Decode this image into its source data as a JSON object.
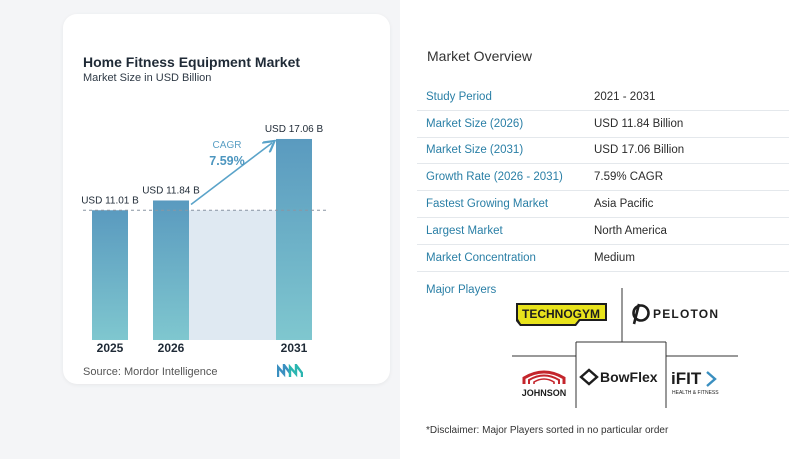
{
  "chart": {
    "title": "Home Fitness Equipment Market",
    "subtitle": "Market Size in USD Billion",
    "cagr_label": "CAGR",
    "cagr_value": "7.59%",
    "source": "Source:  Mordor Intelligence",
    "colors": {
      "bar_top": "#5a9abf",
      "bar_bottom": "#7fc7cf",
      "shade": "#dfe9f2",
      "arrow": "#5aa3c9"
    }
  },
  "chart_data": {
    "type": "bar",
    "categories": [
      "2025",
      "2026",
      "2031"
    ],
    "values": [
      11.01,
      11.84,
      17.06
    ],
    "data_labels": [
      "USD 11.01 B",
      "USD 11.84 B",
      "USD 17.06 B"
    ],
    "ylim": [
      0,
      18.5
    ],
    "grid": false
  },
  "overview": {
    "title": "Market Overview",
    "rows": [
      {
        "key": "Study Period",
        "value": "2021 - 2031"
      },
      {
        "key": "Market Size (2026)",
        "value": "USD 11.84 Billion"
      },
      {
        "key": "Market Size (2031)",
        "value": "USD 17.06 Billion"
      },
      {
        "key": "Growth Rate (2026 - 2031)",
        "value": "7.59% CAGR"
      },
      {
        "key": "Fastest Growing Market",
        "value": "Asia Pacific"
      },
      {
        "key": "Largest Market",
        "value": "North America"
      },
      {
        "key": "Market Concentration",
        "value": "Medium"
      }
    ]
  },
  "players": {
    "title": "Major Players",
    "logos": {
      "technogym": "TECHNOGYM",
      "peloton": "PELOTON",
      "johnson": "JOHNSON",
      "bowflex": "BowFlex",
      "ifit": "iFIT",
      "ifit_sub": "HEALTH & FITNESS"
    }
  },
  "disclaimer": "*Disclaimer: Major Players sorted in no particular order"
}
